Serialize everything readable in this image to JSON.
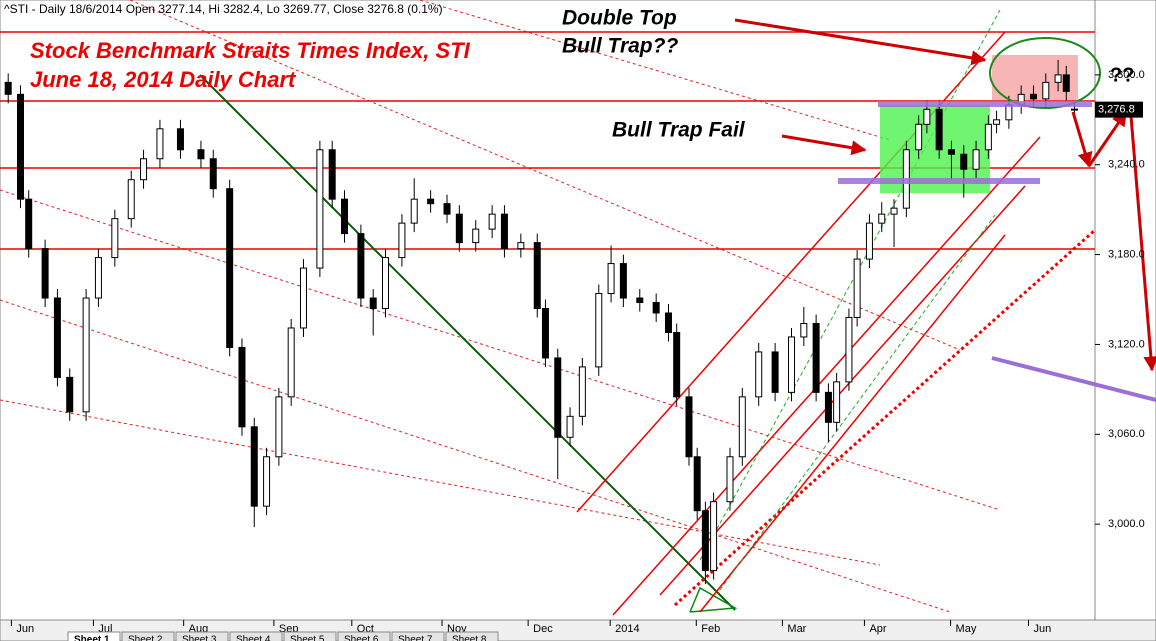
{
  "chart_data": {
    "type": "candlestick",
    "title": "^STI - Daily 18/6/2014 Open 3277.14, Hi 3282.4, Lo 3269.77, Close 3276.8 (0.1%)",
    "annotations": [
      "Stock Benchmark Straits Times Index, STI",
      "June 18, 2014 Daily Chart",
      "Double Top",
      "Bull Trap??",
      "Bull Trap Fail",
      "??"
    ],
    "x": [
      0,
      3,
      5,
      9,
      12,
      15,
      19,
      22,
      26,
      30,
      33,
      37,
      42,
      47,
      50,
      54,
      57,
      60,
      63,
      66,
      69,
      72,
      76,
      79,
      82,
      86,
      89,
      92,
      96,
      99,
      103,
      107,
      110,
      114,
      118,
      121,
      125,
      129,
      131,
      134,
      137,
      140,
      144,
      147,
      150,
      154,
      158,
      161,
      163,
      166,
      168,
      170,
      172,
      176,
      179,
      183,
      187,
      191,
      194,
      197,
      200,
      202,
      205,
      207,
      210,
      213,
      216,
      219,
      222,
      224,
      227,
      230,
      233,
      236,
      239,
      241,
      244,
      247,
      250,
      253,
      256,
      258,
      260
    ],
    "open": [
      3295,
      3287,
      3217,
      3184,
      3151,
      3098,
      3075,
      3151,
      3178,
      3204,
      3230,
      3244,
      3264,
      3250,
      3244,
      3224,
      3118,
      3065,
      3012,
      3045,
      3085,
      3131,
      3171,
      3250,
      3217,
      3194,
      3151,
      3144,
      3178,
      3201,
      3217,
      3214,
      3207,
      3188,
      3197,
      3207,
      3184,
      3188,
      3144,
      3111,
      3058,
      3072,
      3105,
      3154,
      3174,
      3151,
      3148,
      3141,
      3128,
      3085,
      3045,
      3009,
      2969,
      3015,
      3045,
      3085,
      3115,
      3088,
      3125,
      3134,
      3088,
      3068,
      3095,
      3138,
      3177,
      3201,
      3207,
      3211,
      3250,
      3267,
      3277,
      3250,
      3247,
      3237,
      3250,
      3267,
      3270,
      3280,
      3287,
      3284,
      3295,
      3300,
      3277.14
    ],
    "high": [
      3301,
      3293,
      3223,
      3190,
      3157,
      3104,
      3157,
      3184,
      3210,
      3236,
      3250,
      3270,
      3270,
      3256,
      3250,
      3230,
      3124,
      3071,
      3051,
      3091,
      3137,
      3177,
      3256,
      3256,
      3223,
      3200,
      3157,
      3184,
      3207,
      3231,
      3223,
      3220,
      3213,
      3203,
      3213,
      3213,
      3194,
      3194,
      3150,
      3117,
      3078,
      3111,
      3160,
      3186,
      3180,
      3157,
      3154,
      3147,
      3134,
      3091,
      3051,
      3015,
      3021,
      3051,
      3091,
      3121,
      3121,
      3131,
      3145,
      3140,
      3094,
      3101,
      3144,
      3183,
      3207,
      3215,
      3217,
      3256,
      3273,
      3283,
      3283,
      3256,
      3253,
      3256,
      3273,
      3276,
      3286,
      3293,
      3293,
      3301,
      3310,
      3306,
      3282.4
    ],
    "low": [
      3281,
      3211,
      3178,
      3145,
      3092,
      3069,
      3069,
      3145,
      3172,
      3198,
      3224,
      3238,
      3244,
      3238,
      3218,
      3112,
      3059,
      2998,
      3006,
      3039,
      3079,
      3125,
      3165,
      3211,
      3188,
      3145,
      3126,
      3138,
      3172,
      3195,
      3208,
      3201,
      3182,
      3182,
      3191,
      3178,
      3178,
      3138,
      3105,
      3030,
      3052,
      3066,
      3099,
      3148,
      3145,
      3142,
      3135,
      3122,
      3079,
      3039,
      3003,
      2960,
      2963,
      3009,
      3039,
      3079,
      3082,
      3082,
      3119,
      3082,
      3055,
      3062,
      3089,
      3132,
      3171,
      3195,
      3185,
      3205,
      3244,
      3261,
      3244,
      3230,
      3218,
      3231,
      3244,
      3261,
      3264,
      3274,
      3278,
      3278,
      3289,
      3283,
      3269.77
    ],
    "close": [
      3287,
      3217,
      3184,
      3151,
      3098,
      3075,
      3151,
      3178,
      3204,
      3230,
      3244,
      3264,
      3250,
      3244,
      3224,
      3118,
      3065,
      3012,
      3045,
      3085,
      3131,
      3171,
      3250,
      3217,
      3194,
      3151,
      3144,
      3178,
      3201,
      3217,
      3214,
      3207,
      3188,
      3197,
      3207,
      3184,
      3188,
      3144,
      3111,
      3058,
      3072,
      3105,
      3154,
      3174,
      3151,
      3148,
      3141,
      3128,
      3085,
      3045,
      3009,
      2969,
      3015,
      3045,
      3085,
      3115,
      3088,
      3125,
      3134,
      3088,
      3068,
      3095,
      3138,
      3177,
      3201,
      3207,
      3211,
      3250,
      3267,
      3277,
      3250,
      3247,
      3237,
      3250,
      3267,
      3270,
      3280,
      3287,
      3284,
      3295,
      3300,
      3289,
      3276.8
    ],
    "xlim": [
      -2,
      265
    ],
    "ylim": [
      2936,
      3350
    ],
    "xticks": [
      {
        "value": 2,
        "label": "Jun"
      },
      {
        "value": 22,
        "label": "Jul"
      },
      {
        "value": 44,
        "label": "Aug"
      },
      {
        "value": 66,
        "label": "Sep"
      },
      {
        "value": 85,
        "label": "Oct"
      },
      {
        "value": 107,
        "label": "Nov"
      },
      {
        "value": 128,
        "label": "Dec"
      },
      {
        "value": 148,
        "label": "2014"
      },
      {
        "value": 169,
        "label": "Feb"
      },
      {
        "value": 190,
        "label": "Mar"
      },
      {
        "value": 210,
        "label": "Apr"
      },
      {
        "value": 231,
        "label": "May"
      },
      {
        "value": 250,
        "label": "Jun"
      }
    ],
    "yticks": [
      {
        "value": 3000,
        "label": "3,000.0"
      },
      {
        "value": 3060,
        "label": "3,060.0"
      },
      {
        "value": 3120,
        "label": "3,120.0"
      },
      {
        "value": 3180,
        "label": "3,180.0"
      },
      {
        "value": 3240,
        "label": "3,240.0"
      },
      {
        "value": 3300,
        "label": "3,300.0"
      }
    ],
    "last_price": {
      "value": 3276.8,
      "label": "3,276.8"
    },
    "up_color": "#ffffff",
    "down_color": "#000000"
  },
  "tabs": [
    "Sheet 1",
    "Sheet 2",
    "Sheet 3",
    "Sheet 4",
    "Sheet 5",
    "Sheet 6",
    "Sheet 7",
    "Sheet 8"
  ]
}
